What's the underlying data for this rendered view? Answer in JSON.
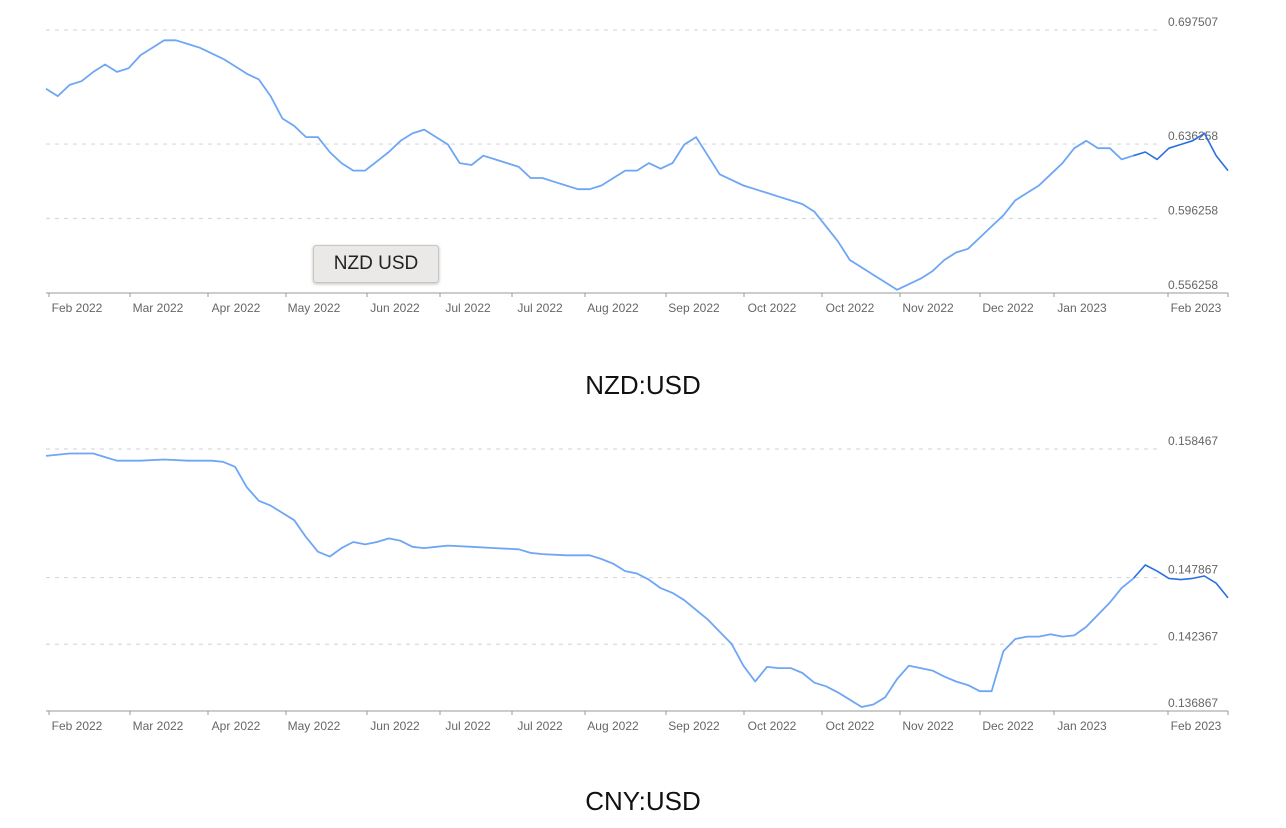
{
  "colors": {
    "line": "#6ea6f5",
    "line_dark": "#2b6fe0",
    "grid": "#d9d9d9",
    "text": "#666666"
  },
  "tooltip": {
    "text": "NZD USD"
  },
  "chart_data": [
    {
      "type": "line",
      "caption": "NZD:USD",
      "x_tick_labels": [
        "Feb 2022",
        "Mar 2022",
        "Apr 2022",
        "May 2022",
        "Jun 2022",
        "Jul 2022",
        "Jul 2022",
        "Aug 2022",
        "Sep 2022",
        "Oct 2022",
        "Oct 2022",
        "Nov 2022",
        "Dec 2022",
        "Jan 2023",
        "Feb 2023"
      ],
      "y_ticks": [
        0.556258,
        0.596258,
        0.636258,
        0.697507
      ],
      "y_tick_labels": [
        "0.556258",
        "0.596258",
        "0.636258",
        "0.697507"
      ],
      "xlim": [
        0,
        100
      ],
      "ylim": [
        0.556258,
        0.697507
      ],
      "grid": true,
      "series": [
        {
          "values": [
            [
              0,
              0.666
            ],
            [
              1,
              0.662
            ],
            [
              2,
              0.668
            ],
            [
              3,
              0.67
            ],
            [
              4,
              0.675
            ],
            [
              5,
              0.679
            ],
            [
              6,
              0.675
            ],
            [
              7,
              0.677
            ],
            [
              8,
              0.684
            ],
            [
              9,
              0.688
            ],
            [
              10,
              0.692
            ],
            [
              11,
              0.692
            ],
            [
              12,
              0.69
            ],
            [
              13,
              0.688
            ],
            [
              14,
              0.685
            ],
            [
              15,
              0.682
            ],
            [
              16,
              0.678
            ],
            [
              17,
              0.674
            ],
            [
              18,
              0.671
            ],
            [
              19,
              0.662
            ],
            [
              20,
              0.65
            ],
            [
              21,
              0.646
            ],
            [
              22,
              0.64
            ],
            [
              23,
              0.64
            ],
            [
              24,
              0.632
            ],
            [
              25,
              0.626
            ],
            [
              26,
              0.622
            ],
            [
              27,
              0.622
            ],
            [
              28,
              0.627
            ],
            [
              29,
              0.632
            ],
            [
              30,
              0.638
            ],
            [
              31,
              0.642
            ],
            [
              32,
              0.644
            ],
            [
              33,
              0.64
            ],
            [
              34,
              0.636
            ],
            [
              35,
              0.626
            ],
            [
              36,
              0.625
            ],
            [
              37,
              0.63
            ],
            [
              38,
              0.628
            ],
            [
              39,
              0.626
            ],
            [
              40,
              0.624
            ],
            [
              41,
              0.618
            ],
            [
              42,
              0.618
            ],
            [
              43,
              0.616
            ],
            [
              44,
              0.614
            ],
            [
              45,
              0.612
            ],
            [
              46,
              0.612
            ],
            [
              47,
              0.614
            ],
            [
              48,
              0.618
            ],
            [
              49,
              0.622
            ],
            [
              50,
              0.622
            ],
            [
              51,
              0.626
            ],
            [
              52,
              0.623
            ],
            [
              53,
              0.626
            ],
            [
              54,
              0.636
            ],
            [
              55,
              0.64
            ],
            [
              56,
              0.63
            ],
            [
              57,
              0.62
            ],
            [
              58,
              0.617
            ],
            [
              59,
              0.614
            ],
            [
              60,
              0.612
            ],
            [
              61,
              0.61
            ],
            [
              62,
              0.608
            ],
            [
              63,
              0.606
            ],
            [
              64,
              0.604
            ],
            [
              65,
              0.6
            ],
            [
              66,
              0.592
            ],
            [
              67,
              0.584
            ],
            [
              68,
              0.574
            ],
            [
              69,
              0.57
            ],
            [
              70,
              0.566
            ],
            [
              71,
              0.562
            ],
            [
              72,
              0.558
            ],
            [
              73,
              0.561
            ],
            [
              74,
              0.564
            ],
            [
              75,
              0.568
            ],
            [
              76,
              0.574
            ],
            [
              77,
              0.578
            ],
            [
              78,
              0.58
            ],
            [
              79,
              0.586
            ],
            [
              80,
              0.592
            ],
            [
              81,
              0.598
            ],
            [
              82,
              0.606
            ],
            [
              83,
              0.61
            ],
            [
              84,
              0.614
            ],
            [
              85,
              0.62
            ],
            [
              86,
              0.626
            ],
            [
              87,
              0.634
            ],
            [
              88,
              0.638
            ],
            [
              89,
              0.634
            ],
            [
              90,
              0.634
            ],
            [
              91,
              0.628
            ],
            [
              92,
              0.63
            ],
            [
              93,
              0.632
            ],
            [
              94,
              0.628
            ],
            [
              95,
              0.634
            ],
            [
              96,
              0.636
            ],
            [
              97,
              0.638
            ],
            [
              98,
              0.642
            ],
            [
              99,
              0.63
            ],
            [
              100,
              0.622
            ]
          ]
        }
      ]
    },
    {
      "type": "line",
      "caption": "CNY:USD",
      "x_tick_labels": [
        "Feb 2022",
        "Mar 2022",
        "Apr 2022",
        "May 2022",
        "Jun 2022",
        "Jul 2022",
        "Jul 2022",
        "Aug 2022",
        "Sep 2022",
        "Oct 2022",
        "Oct 2022",
        "Nov 2022",
        "Dec 2022",
        "Jan 2023",
        "Feb 2023"
      ],
      "y_ticks": [
        0.136867,
        0.142367,
        0.147867,
        0.158467
      ],
      "y_tick_labels": [
        "0.136867",
        "0.142367",
        "0.147867",
        "0.158467"
      ],
      "xlim": [
        0,
        100
      ],
      "ylim": [
        0.136867,
        0.158467
      ],
      "grid": true,
      "series": [
        {
          "values": [
            [
              0,
              0.1579
            ],
            [
              2,
              0.1581
            ],
            [
              4,
              0.1581
            ],
            [
              5,
              0.1578
            ],
            [
              6,
              0.1575
            ],
            [
              8,
              0.1575
            ],
            [
              10,
              0.1576
            ],
            [
              12,
              0.1575
            ],
            [
              14,
              0.1575
            ],
            [
              15,
              0.1574
            ],
            [
              16,
              0.157
            ],
            [
              17,
              0.1553
            ],
            [
              18,
              0.1542
            ],
            [
              19,
              0.1538
            ],
            [
              20,
              0.1532
            ],
            [
              21,
              0.1526
            ],
            [
              22,
              0.1512
            ],
            [
              23,
              0.15
            ],
            [
              24,
              0.1496
            ],
            [
              25,
              0.1503
            ],
            [
              26,
              0.1508
            ],
            [
              27,
              0.1506
            ],
            [
              28,
              0.1508
            ],
            [
              29,
              0.1511
            ],
            [
              30,
              0.1509
            ],
            [
              31,
              0.1504
            ],
            [
              32,
              0.1503
            ],
            [
              33,
              0.1504
            ],
            [
              34,
              0.1505
            ],
            [
              36,
              0.1504
            ],
            [
              38,
              0.1503
            ],
            [
              40,
              0.1502
            ],
            [
              41,
              0.1499
            ],
            [
              42,
              0.1498
            ],
            [
              44,
              0.1497
            ],
            [
              46,
              0.1497
            ],
            [
              47,
              0.1494
            ],
            [
              48,
              0.149
            ],
            [
              49,
              0.1484
            ],
            [
              50,
              0.1482
            ],
            [
              51,
              0.1477
            ],
            [
              52,
              0.147
            ],
            [
              53,
              0.1466
            ],
            [
              54,
              0.146
            ],
            [
              55,
              0.1452
            ],
            [
              56,
              0.1444
            ],
            [
              57,
              0.1434
            ],
            [
              58,
              0.1424
            ],
            [
              59,
              0.1406
            ],
            [
              60,
              0.1393
            ],
            [
              61,
              0.1405
            ],
            [
              62,
              0.1404
            ],
            [
              63,
              0.1404
            ],
            [
              64,
              0.14
            ],
            [
              65,
              0.1392
            ],
            [
              66,
              0.1389
            ],
            [
              67,
              0.1384
            ],
            [
              68,
              0.1378
            ],
            [
              69,
              0.1372
            ],
            [
              70,
              0.1374
            ],
            [
              71,
              0.138
            ],
            [
              72,
              0.1395
            ],
            [
              73,
              0.1406
            ],
            [
              74,
              0.1404
            ],
            [
              75,
              0.1402
            ],
            [
              76,
              0.1397
            ],
            [
              77,
              0.1393
            ],
            [
              78,
              0.139
            ],
            [
              79,
              0.1385
            ],
            [
              80,
              0.1385
            ],
            [
              81,
              0.1418
            ],
            [
              82,
              0.1428
            ],
            [
              83,
              0.143
            ],
            [
              84,
              0.143
            ],
            [
              85,
              0.1432
            ],
            [
              86,
              0.143
            ],
            [
              87,
              0.1431
            ],
            [
              88,
              0.1438
            ],
            [
              89,
              0.1448
            ],
            [
              90,
              0.1458
            ],
            [
              91,
              0.147
            ],
            [
              92,
              0.1478
            ],
            [
              93,
              0.1489
            ],
            [
              94,
              0.1484
            ],
            [
              95,
              0.1478
            ],
            [
              96,
              0.1477
            ],
            [
              97,
              0.1478
            ],
            [
              98,
              0.148
            ],
            [
              99,
              0.1474
            ],
            [
              100,
              0.1462
            ]
          ]
        }
      ]
    }
  ]
}
